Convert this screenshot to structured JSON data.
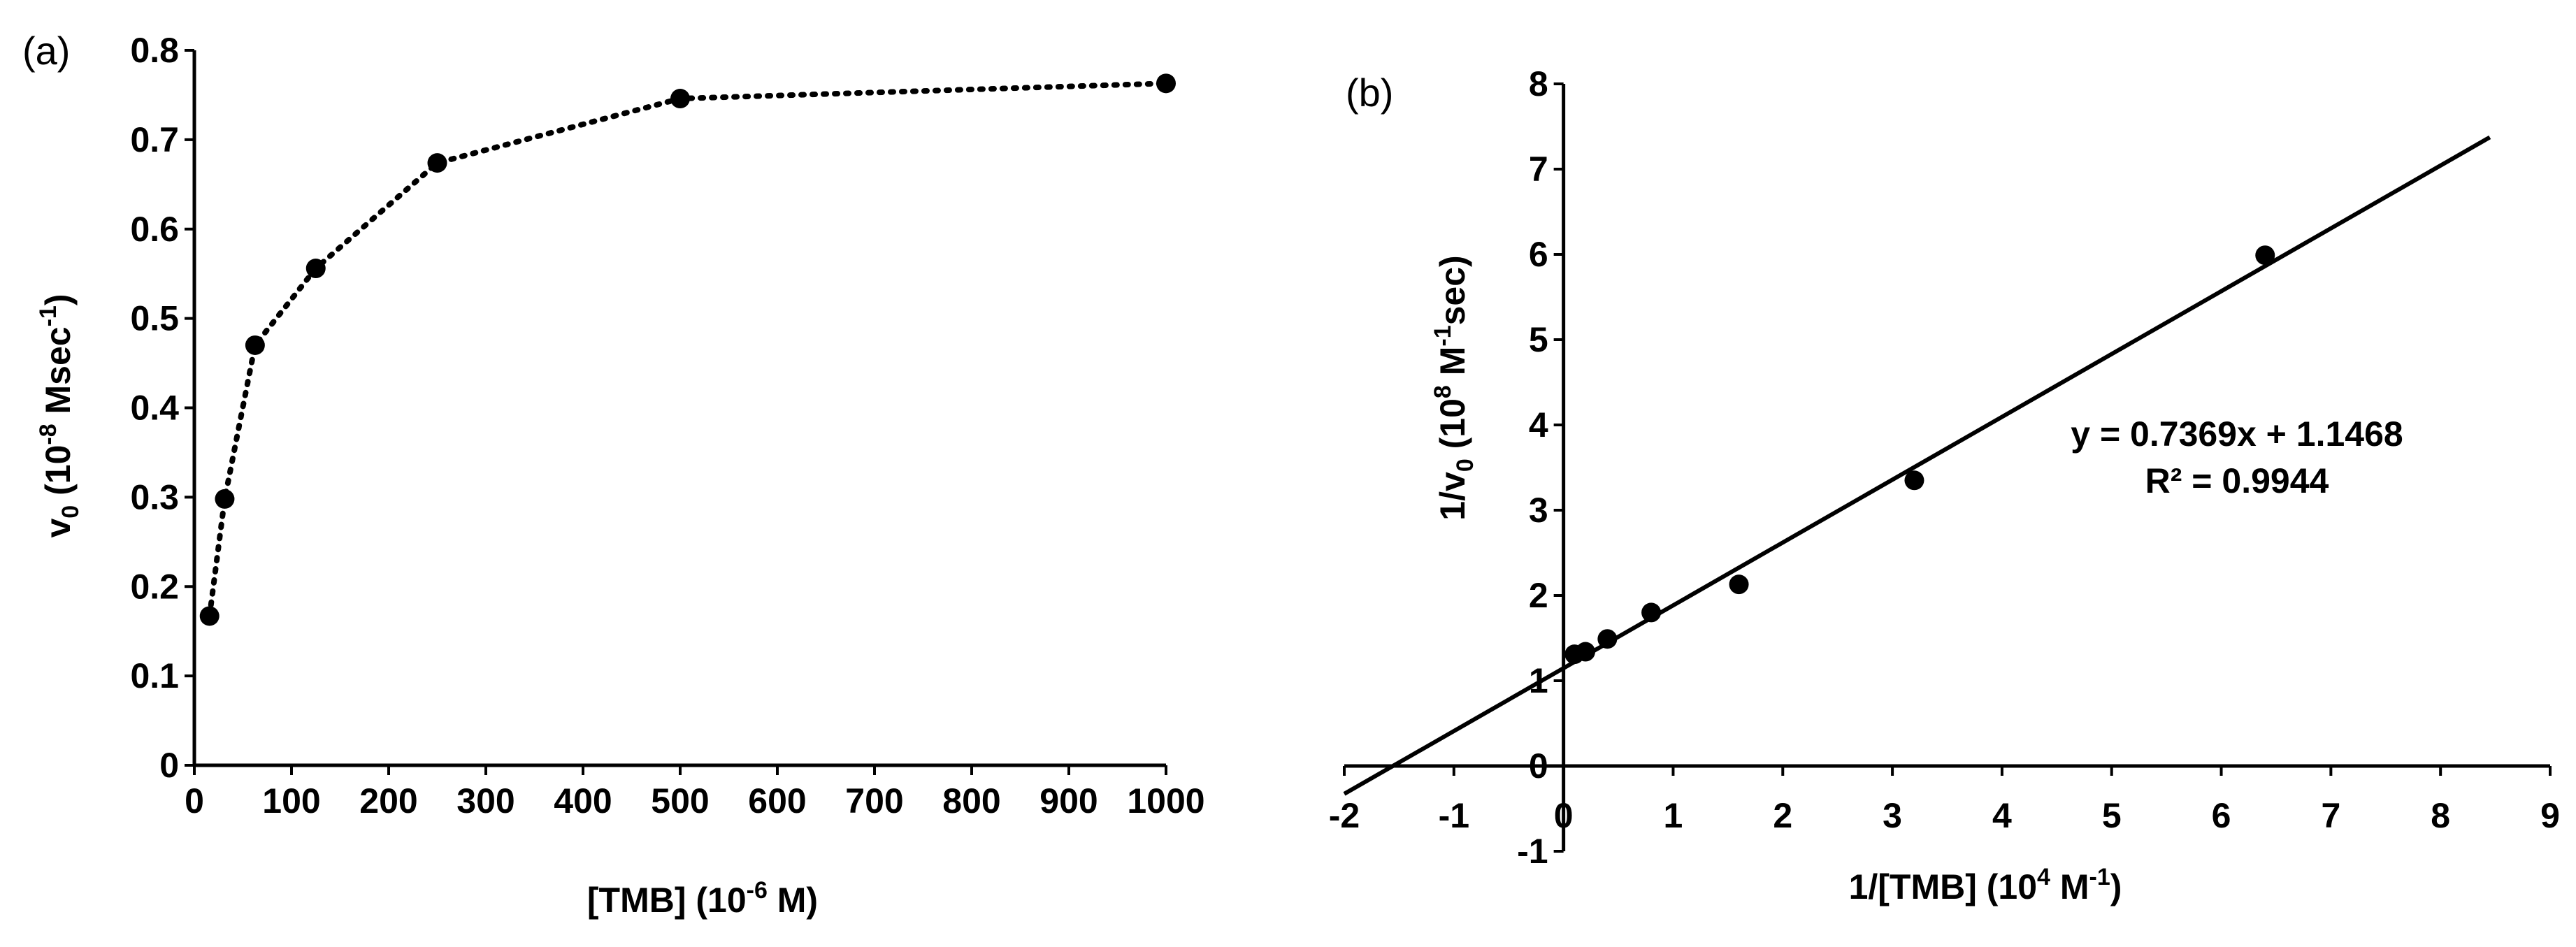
{
  "chart_data": [
    {
      "panel": "(a)",
      "type": "line",
      "line_style": "dotted",
      "x": [
        15.625,
        31.25,
        62.5,
        125,
        250,
        500,
        1000
      ],
      "y": [
        0.167,
        0.298,
        0.47,
        0.556,
        0.674,
        0.746,
        0.763
      ],
      "xlim": [
        0,
        1000
      ],
      "ylim": [
        0,
        0.8
      ],
      "xticks": [
        0,
        100,
        200,
        300,
        400,
        500,
        600,
        700,
        800,
        900,
        1000
      ],
      "xtick_labels": [
        "0",
        "100",
        "200",
        "300",
        "400",
        "500",
        "600",
        "700",
        "800",
        "900",
        "1000"
      ],
      "yticks": [
        0,
        0.1,
        0.2,
        0.3,
        0.4,
        0.5,
        0.6,
        0.7,
        0.8
      ],
      "ytick_labels": [
        "0",
        "0.1",
        "0.2",
        "0.3",
        "0.4",
        "0.5",
        "0.6",
        "0.7",
        "0.8"
      ],
      "xlabel": {
        "main": "[TMB] (10",
        "sup": "-6",
        "tail": " M)"
      },
      "ylabel": {
        "v": "v",
        "sub": "0",
        "mid": " (10",
        "sup1": "-8",
        "mid2": " Msec",
        "sup2": "-1",
        "tail": ")"
      }
    },
    {
      "panel": "(b)",
      "type": "scatter",
      "x": [
        0.1,
        0.2,
        0.4,
        0.8,
        1.6,
        3.2,
        6.4
      ],
      "y": [
        1.31,
        1.34,
        1.49,
        1.8,
        2.13,
        3.35,
        5.99
      ],
      "trendline": {
        "type": "linear",
        "slope": 0.7369,
        "intercept": 1.1468,
        "x_range": [
          -2,
          8.45
        ]
      },
      "equation": "y = 0.7369x + 1.1468",
      "r_squared": "R² = 0.9944",
      "xlim": [
        -2,
        9
      ],
      "ylim": [
        -1,
        8
      ],
      "xticks": [
        -2,
        -1,
        0,
        1,
        2,
        3,
        4,
        5,
        6,
        7,
        8,
        9
      ],
      "xtick_labels": [
        "-2",
        "-1",
        "0",
        "1",
        "2",
        "3",
        "4",
        "5",
        "6",
        "7",
        "8",
        "9"
      ],
      "yticks": [
        -1,
        0,
        1,
        2,
        3,
        4,
        5,
        6,
        7,
        8
      ],
      "ytick_labels": [
        "-1",
        "0",
        "1",
        "2",
        "3",
        "4",
        "5",
        "6",
        "7",
        "8"
      ],
      "xlabel": {
        "main": "1/[TMB] (10",
        "sup": "4",
        "mid": " M",
        "sup2": "-1",
        "tail": ")"
      },
      "ylabel": {
        "main": "1/v",
        "sub": "0",
        "mid": " (10",
        "sup1": "8",
        "mid2": " M",
        "sup2": "-1",
        "tail": "sec)"
      }
    }
  ]
}
